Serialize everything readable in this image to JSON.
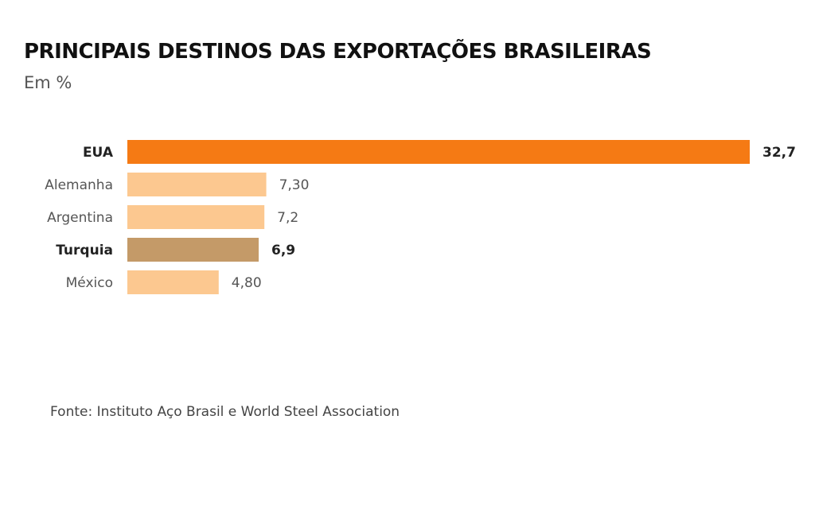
{
  "header": {
    "title": "PRINCIPAIS DESTINOS DAS EXPORTAÇÕES BRASILEIRAS",
    "subtitle": "Em %"
  },
  "footer": {
    "source": "Fonte: Instituto Aço Brasil e World Steel Association"
  },
  "chart_data": {
    "type": "bar",
    "orientation": "horizontal",
    "categories": [
      "EUA",
      "Alemanha",
      "Argentina",
      "Turquia",
      "México"
    ],
    "values": [
      32.7,
      7.3,
      7.2,
      6.9,
      4.8
    ],
    "value_labels": [
      "32,7",
      "7,30",
      "7,2",
      "6,9",
      "4,80"
    ],
    "highlighted": [
      true,
      false,
      false,
      true,
      false
    ],
    "bar_colors": [
      "#f57a14",
      "#fcc890",
      "#fcc890",
      "#c49a68",
      "#fcc890"
    ],
    "title": "PRINCIPAIS DESTINOS DAS EXPORTAÇÕES BRASILEIRAS",
    "subtitle": "Em %",
    "xlim": [
      0,
      32.7
    ],
    "grid": false,
    "legend": "none"
  }
}
